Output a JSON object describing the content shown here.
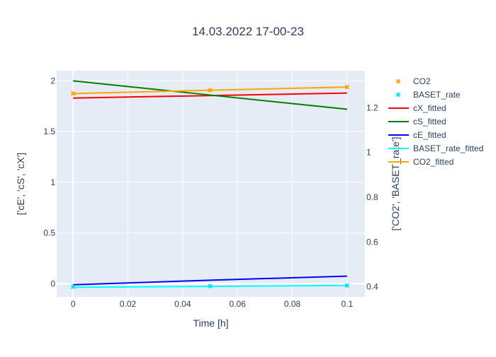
{
  "chart_data": {
    "type": "line",
    "title": "14.03.2022 17-00-23",
    "xlabel": "Time [h]",
    "ylabel_left": "['cE', 'cS', 'cX']",
    "ylabel_right": "['CO2', 'BASET_rate']",
    "xlim": [
      -0.006,
      0.1065
    ],
    "ylim_left": [
      -0.13,
      2.1
    ],
    "ylim_right": [
      0.355,
      1.365
    ],
    "x_ticks": [
      0,
      0.02,
      0.04,
      0.06,
      0.08,
      0.1
    ],
    "x_tick_labels": [
      "0",
      "0.02",
      "0.04",
      "0.06",
      "0.08",
      "0.1"
    ],
    "y_left_ticks": [
      0,
      0.5,
      1,
      1.5,
      2
    ],
    "y_left_tick_labels": [
      "0",
      "0.5",
      "1",
      "1.5",
      "2"
    ],
    "y_right_ticks": [
      0.4,
      0.6,
      0.8,
      1.0,
      1.2
    ],
    "y_right_tick_labels": [
      "0.4",
      "0.6",
      "0.8",
      "1",
      "1.2"
    ],
    "grid": true,
    "legend_position": "top-right",
    "series": [
      {
        "name": "CO2",
        "mode": "markers",
        "axis": "right",
        "color": "#ffa500",
        "x": [
          0,
          0.05,
          0.1
        ],
        "y": [
          1.263,
          1.278,
          1.292
        ]
      },
      {
        "name": "BASET_rate",
        "mode": "markers",
        "axis": "right",
        "color": "#00e5ee",
        "x": [
          0,
          0.05,
          0.1
        ],
        "y": [
          0.4,
          0.403,
          0.406
        ]
      },
      {
        "name": "cX_fitted",
        "mode": "lines",
        "axis": "left",
        "color": "#ff0000",
        "x": [
          0,
          0.1
        ],
        "y": [
          1.83,
          1.88
        ]
      },
      {
        "name": "cS_fitted",
        "mode": "lines",
        "axis": "left",
        "color": "#008000",
        "x": [
          0,
          0.05,
          0.1
        ],
        "y": [
          2.0,
          1.86,
          1.72
        ]
      },
      {
        "name": "cE_fitted",
        "mode": "lines",
        "axis": "left",
        "color": "#0000ff",
        "x": [
          0,
          0.05,
          0.1
        ],
        "y": [
          -0.01,
          0.035,
          0.075
        ]
      },
      {
        "name": "BASET_rate_fitted",
        "mode": "lines",
        "axis": "right",
        "color": "#00ffff",
        "x": [
          0,
          0.05,
          0.1
        ],
        "y": [
          0.398,
          0.402,
          0.406
        ]
      },
      {
        "name": "CO2_fitted",
        "mode": "lines",
        "axis": "right",
        "color": "#ffa500",
        "x": [
          0,
          0.05,
          0.1
        ],
        "y": [
          1.263,
          1.278,
          1.292
        ]
      }
    ]
  }
}
